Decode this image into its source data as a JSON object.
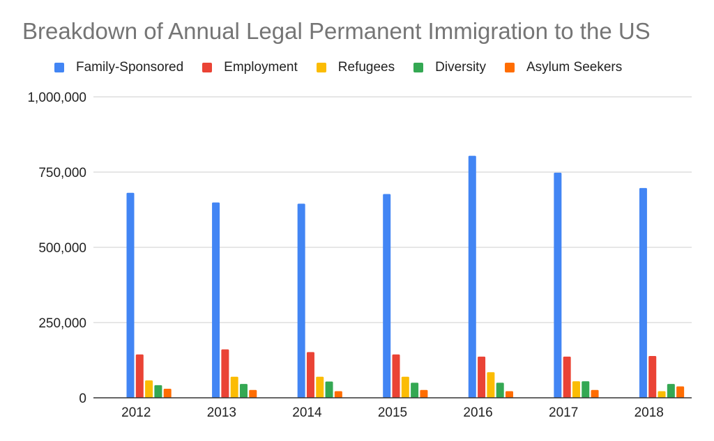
{
  "chart_data": {
    "type": "bar",
    "title": "Breakdown of Annual Legal Permanent Immigration to the US",
    "xlabel": "",
    "ylabel": "",
    "categories": [
      "2012",
      "2013",
      "2014",
      "2015",
      "2016",
      "2017",
      "2018"
    ],
    "ylim": [
      0,
      1000000
    ],
    "yticks": [
      0,
      250000,
      500000,
      750000,
      1000000
    ],
    "ytick_labels": [
      "0",
      "250,000",
      "500,000",
      "750,000",
      "1,000,000"
    ],
    "grid": true,
    "legend_position": "top",
    "series": [
      {
        "name": "Family-Sponsored",
        "color": "#4285F4",
        "values": [
          681000,
          649000,
          645000,
          677000,
          804000,
          748000,
          697000
        ]
      },
      {
        "name": "Employment",
        "color": "#EA4335",
        "values": [
          144000,
          161000,
          152000,
          144000,
          137000,
          137000,
          139000
        ]
      },
      {
        "name": "Refugees",
        "color": "#FBBC04",
        "values": [
          58000,
          70000,
          70000,
          70000,
          85000,
          55000,
          22000
        ]
      },
      {
        "name": "Diversity",
        "color": "#34A853",
        "values": [
          42000,
          46000,
          54000,
          50000,
          50000,
          55000,
          46000
        ]
      },
      {
        "name": "Asylum Seekers",
        "color": "#FF6D01",
        "values": [
          30000,
          26000,
          22000,
          26000,
          22000,
          26000,
          38000
        ]
      }
    ]
  }
}
